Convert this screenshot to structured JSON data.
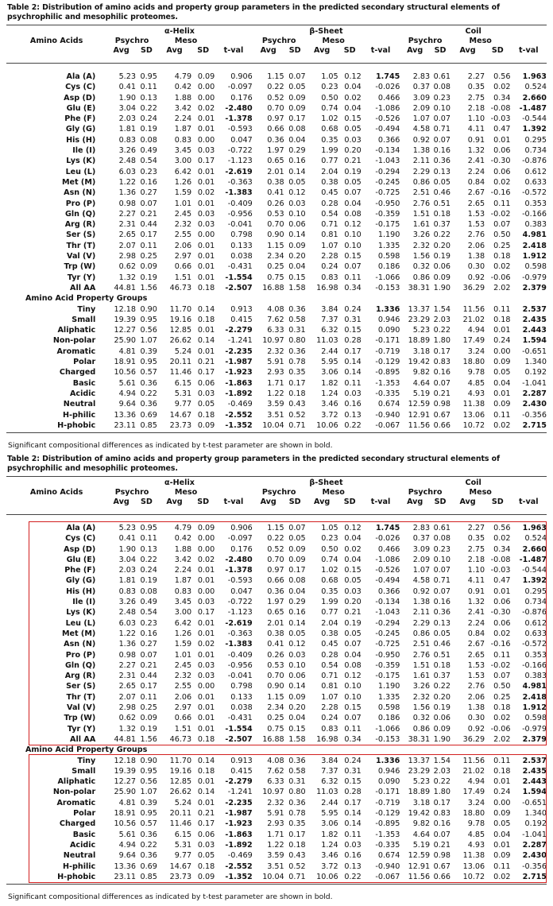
{
  "caption": "Table 2: Distribution of amino acids and property group parameters in the predicted secondary structural elements of psychrophilic and mesophilic proteomes.",
  "headers": {
    "first_col": "Amino Acids",
    "groups": [
      "α-Helix",
      "β-Sheet",
      "Coil"
    ],
    "psychro": "Psychro",
    "meso": "Meso",
    "avg": "Avg",
    "sd": "SD",
    "tval": "t-val"
  },
  "property_group_heading": "Amino Acid Property Groups",
  "footnote": "Significant compositional differences as indicated by t-test parameter are shown in bold.",
  "annotation_color": "#d21f1f",
  "amino_acids": [
    {
      "label": "Ala (A)",
      "v": [
        "5.23",
        "0.95",
        "4.79",
        "0.09",
        "0.906",
        "1.15",
        "0.07",
        "1.05",
        "0.12",
        "1.745",
        "2.83",
        "0.61",
        "2.27",
        "0.56",
        "1.963"
      ],
      "bold": [
        9,
        14
      ]
    },
    {
      "label": "Cys (C)",
      "v": [
        "0.41",
        "0.11",
        "0.42",
        "0.00",
        "-0.097",
        "0.22",
        "0.05",
        "0.23",
        "0.04",
        "-0.026",
        "0.37",
        "0.08",
        "0.35",
        "0.02",
        "0.524"
      ],
      "bold": []
    },
    {
      "label": "Asp (D)",
      "v": [
        "1.90",
        "0.13",
        "1.88",
        "0.00",
        "0.176",
        "0.52",
        "0.09",
        "0.50",
        "0.02",
        "0.466",
        "3.09",
        "0.23",
        "2.75",
        "0.34",
        "2.660"
      ],
      "bold": [
        14
      ]
    },
    {
      "label": "Glu (E)",
      "v": [
        "3.04",
        "0.22",
        "3.42",
        "0.02",
        "-2.480",
        "0.70",
        "0.09",
        "0.74",
        "0.04",
        "-1.086",
        "2.09",
        "0.10",
        "2.18",
        "-0.08",
        "-1.487"
      ],
      "bold": [
        4,
        14
      ]
    },
    {
      "label": "Phe (F)",
      "v": [
        "2.03",
        "0.24",
        "2.24",
        "0.01",
        "-1.378",
        "0.97",
        "0.17",
        "1.02",
        "0.15",
        "-0.526",
        "1.07",
        "0.07",
        "1.10",
        "-0.03",
        "-0.544"
      ],
      "bold": [
        4
      ]
    },
    {
      "label": "Gly (G)",
      "v": [
        "1.81",
        "0.19",
        "1.87",
        "0.01",
        "-0.593",
        "0.66",
        "0.08",
        "0.68",
        "0.05",
        "-0.494",
        "4.58",
        "0.71",
        "4.11",
        "0.47",
        "1.392"
      ],
      "bold": [
        14
      ]
    },
    {
      "label": "His (H)",
      "v": [
        "0.83",
        "0.08",
        "0.83",
        "0.00",
        "0.047",
        "0.36",
        "0.04",
        "0.35",
        "0.03",
        "0.366",
        "0.92",
        "0.07",
        "0.91",
        "0.01",
        "0.295"
      ],
      "bold": []
    },
    {
      "label": "Ile (I)",
      "v": [
        "3.26",
        "0.49",
        "3.45",
        "0.03",
        "-0.722",
        "1.97",
        "0.29",
        "1.99",
        "0.20",
        "-0.134",
        "1.38",
        "0.16",
        "1.32",
        "0.06",
        "0.734"
      ],
      "bold": []
    },
    {
      "label": "Lys (K)",
      "v": [
        "2.48",
        "0.54",
        "3.00",
        "0.17",
        "-1.123",
        "0.65",
        "0.16",
        "0.77",
        "0.21",
        "-1.043",
        "2.11",
        "0.36",
        "2.41",
        "-0.30",
        "-0.876"
      ],
      "bold": []
    },
    {
      "label": "Leu (L)",
      "v": [
        "6.03",
        "0.23",
        "6.42",
        "0.01",
        "-2.619",
        "2.01",
        "0.14",
        "2.04",
        "0.19",
        "-0.294",
        "2.29",
        "0.13",
        "2.24",
        "0.06",
        "0.612"
      ],
      "bold": [
        4
      ]
    },
    {
      "label": "Met (M)",
      "v": [
        "1.22",
        "0.16",
        "1.26",
        "0.01",
        "-0.363",
        "0.38",
        "0.05",
        "0.38",
        "0.05",
        "-0.245",
        "0.86",
        "0.05",
        "0.84",
        "0.02",
        "0.633"
      ],
      "bold": []
    },
    {
      "label": "Asn (N)",
      "v": [
        "1.36",
        "0.27",
        "1.59",
        "0.02",
        "-1.383",
        "0.41",
        "0.12",
        "0.45",
        "0.07",
        "-0.725",
        "2.51",
        "0.46",
        "2.67",
        "-0.16",
        "-0.572"
      ],
      "bold": [
        4
      ]
    },
    {
      "label": "Pro (P)",
      "v": [
        "0.98",
        "0.07",
        "1.01",
        "0.01",
        "-0.409",
        "0.26",
        "0.03",
        "0.28",
        "0.04",
        "-0.950",
        "2.76",
        "0.51",
        "2.65",
        "0.11",
        "0.353"
      ],
      "bold": []
    },
    {
      "label": "Gln (Q)",
      "v": [
        "2.27",
        "0.21",
        "2.45",
        "0.03",
        "-0.956",
        "0.53",
        "0.10",
        "0.54",
        "0.08",
        "-0.359",
        "1.51",
        "0.18",
        "1.53",
        "-0.02",
        "-0.166"
      ],
      "bold": []
    },
    {
      "label": "Arg (R)",
      "v": [
        "2.31",
        "0.44",
        "2.32",
        "0.03",
        "-0.041",
        "0.70",
        "0.06",
        "0.71",
        "0.12",
        "-0.175",
        "1.61",
        "0.37",
        "1.53",
        "0.07",
        "0.383"
      ],
      "bold": []
    },
    {
      "label": "Ser (S)",
      "v": [
        "2.65",
        "0.17",
        "2.55",
        "0.00",
        "0.798",
        "0.90",
        "0.14",
        "0.81",
        "0.10",
        "1.190",
        "3.26",
        "0.22",
        "2.76",
        "0.50",
        "4.981"
      ],
      "bold": [
        14
      ]
    },
    {
      "label": "Thr (T)",
      "v": [
        "2.07",
        "0.11",
        "2.06",
        "0.01",
        "0.133",
        "1.15",
        "0.09",
        "1.07",
        "0.10",
        "1.335",
        "2.32",
        "0.20",
        "2.06",
        "0.25",
        "2.418"
      ],
      "bold": [
        14
      ]
    },
    {
      "label": "Val (V)",
      "v": [
        "2.98",
        "0.25",
        "2.97",
        "0.01",
        "0.038",
        "2.34",
        "0.20",
        "2.28",
        "0.15",
        "0.598",
        "1.56",
        "0.19",
        "1.38",
        "0.18",
        "1.912"
      ],
      "bold": [
        14
      ]
    },
    {
      "label": "Trp (W)",
      "v": [
        "0.62",
        "0.09",
        "0.66",
        "0.01",
        "-0.431",
        "0.25",
        "0.04",
        "0.24",
        "0.07",
        "0.186",
        "0.32",
        "0.06",
        "0.30",
        "0.02",
        "0.598"
      ],
      "bold": []
    },
    {
      "label": "Tyr (Y)",
      "v": [
        "1.32",
        "0.19",
        "1.51",
        "0.01",
        "-1.554",
        "0.75",
        "0.15",
        "0.83",
        "0.11",
        "-1.066",
        "0.86",
        "0.09",
        "0.92",
        "-0.06",
        "-0.979"
      ],
      "bold": [
        4
      ]
    },
    {
      "label": "All AA",
      "v": [
        "44.81",
        "1.56",
        "46.73",
        "0.18",
        "-2.507",
        "16.88",
        "1.58",
        "16.98",
        "0.34",
        "-0.153",
        "38.31",
        "1.90",
        "36.29",
        "2.02",
        "2.379"
      ],
      "bold": [
        4,
        14
      ]
    }
  ],
  "property_groups": [
    {
      "label": "Tiny",
      "v": [
        "12.18",
        "0.90",
        "11.70",
        "0.14",
        "0.913",
        "4.08",
        "0.36",
        "3.84",
        "0.24",
        "1.336",
        "13.37",
        "1.54",
        "11.56",
        "0.11",
        "2.537"
      ],
      "bold": [
        9,
        14
      ]
    },
    {
      "label": "Small",
      "v": [
        "19.39",
        "0.95",
        "19.16",
        "0.18",
        "0.415",
        "7.62",
        "0.58",
        "7.37",
        "0.31",
        "0.946",
        "23.29",
        "2.03",
        "21.02",
        "0.18",
        "2.435"
      ],
      "bold": [
        14
      ]
    },
    {
      "label": "Aliphatic",
      "v": [
        "12.27",
        "0.56",
        "12.85",
        "0.01",
        "-2.279",
        "6.33",
        "0.31",
        "6.32",
        "0.15",
        "0.090",
        "5.23",
        "0.22",
        "4.94",
        "0.01",
        "2.443"
      ],
      "bold": [
        4,
        14
      ]
    },
    {
      "label": "Non-polar",
      "v": [
        "25.90",
        "1.07",
        "26.62",
        "0.14",
        "-1.241",
        "10.97",
        "0.80",
        "11.03",
        "0.28",
        "-0.171",
        "18.89",
        "1.80",
        "17.49",
        "0.24",
        "1.594"
      ],
      "bold": [
        14
      ]
    },
    {
      "label": "Aromatic",
      "v": [
        "4.81",
        "0.39",
        "5.24",
        "0.01",
        "-2.235",
        "2.32",
        "0.36",
        "2.44",
        "0.17",
        "-0.719",
        "3.18",
        "0.17",
        "3.24",
        "0.00",
        "-0.651"
      ],
      "bold": [
        4
      ]
    },
    {
      "label": "Polar",
      "v": [
        "18.91",
        "0.95",
        "20.11",
        "0.21",
        "-1.987",
        "5.91",
        "0.78",
        "5.95",
        "0.14",
        "-0.129",
        "19.42",
        "0.83",
        "18.80",
        "0.09",
        "1.340"
      ],
      "bold": [
        4
      ]
    },
    {
      "label": "Charged",
      "v": [
        "10.56",
        "0.57",
        "11.46",
        "0.17",
        "-1.923",
        "2.93",
        "0.35",
        "3.06",
        "0.14",
        "-0.895",
        "9.82",
        "0.16",
        "9.78",
        "0.05",
        "0.192"
      ],
      "bold": [
        4
      ]
    },
    {
      "label": "Basic",
      "v": [
        "5.61",
        "0.36",
        "6.15",
        "0.06",
        "-1.863",
        "1.71",
        "0.17",
        "1.82",
        "0.11",
        "-1.353",
        "4.64",
        "0.07",
        "4.85",
        "0.04",
        "-1.041"
      ],
      "bold": [
        4
      ]
    },
    {
      "label": "Acidic",
      "v": [
        "4.94",
        "0.22",
        "5.31",
        "0.03",
        "-1.892",
        "1.22",
        "0.18",
        "1.24",
        "0.03",
        "-0.335",
        "5.19",
        "0.21",
        "4.93",
        "0.01",
        "2.287"
      ],
      "bold": [
        4,
        14
      ]
    },
    {
      "label": "Neutral",
      "v": [
        "9.64",
        "0.36",
        "9.77",
        "0.05",
        "-0.469",
        "3.59",
        "0.43",
        "3.46",
        "0.16",
        "0.674",
        "12.59",
        "0.98",
        "11.38",
        "0.09",
        "2.430"
      ],
      "bold": [
        14
      ]
    },
    {
      "label": "H-philic",
      "v": [
        "13.36",
        "0.69",
        "14.67",
        "0.18",
        "-2.552",
        "3.51",
        "0.52",
        "3.72",
        "0.13",
        "-0.940",
        "12.91",
        "0.67",
        "13.06",
        "0.11",
        "-0.356"
      ],
      "bold": [
        4
      ]
    },
    {
      "label": "H-phobic",
      "v": [
        "23.11",
        "0.85",
        "23.73",
        "0.09",
        "-1.352",
        "10.04",
        "0.71",
        "10.06",
        "0.22",
        "-0.067",
        "11.56",
        "0.66",
        "10.72",
        "0.02",
        "2.715"
      ],
      "bold": [
        4,
        14
      ]
    }
  ]
}
